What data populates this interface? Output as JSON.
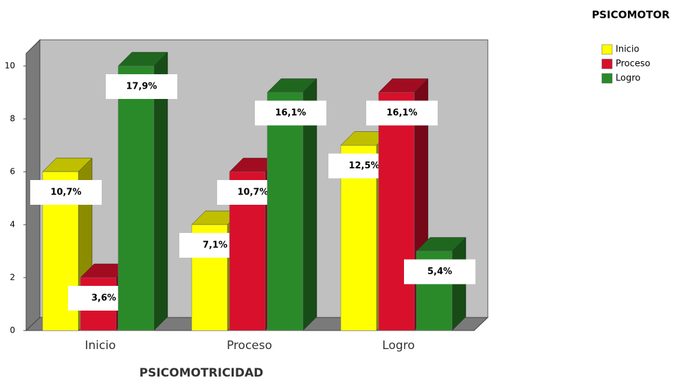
{
  "chart_data": {
    "type": "bar3d",
    "categories": [
      "Inicio",
      "Proceso",
      "Logro"
    ],
    "x_label": "PSICOMOTRICIDAD",
    "legend_title": "PSICOMOTOR",
    "ylim": [
      0,
      10
    ],
    "yticks": [
      0,
      2,
      4,
      6,
      8,
      10
    ],
    "series": [
      {
        "name": "Inicio",
        "color": "#ffff00",
        "values": [
          6,
          4,
          7
        ],
        "value_labels": [
          "10,7%",
          "7,1%",
          "12,5%"
        ]
      },
      {
        "name": "Proceso",
        "color": "#d8102c",
        "values": [
          2,
          6,
          9
        ],
        "value_labels": [
          "3,6%",
          "10,7%",
          "16,1%"
        ]
      },
      {
        "name": "Logro",
        "color": "#2a8a2a",
        "values": [
          10,
          9,
          3
        ],
        "value_labels": [
          "17,9%",
          "16,1%",
          "5,4%"
        ]
      }
    ]
  }
}
